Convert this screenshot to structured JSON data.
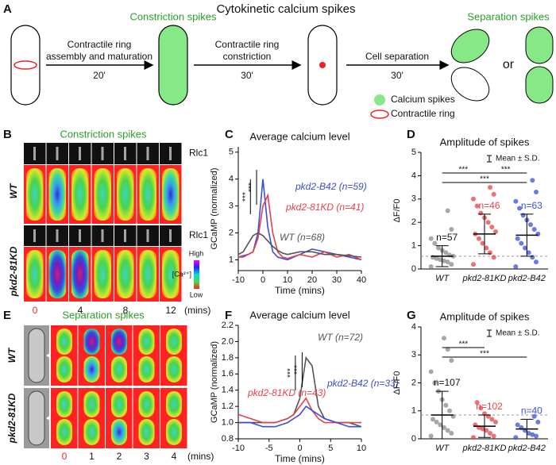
{
  "panel_labels": [
    "A",
    "B",
    "C",
    "D",
    "E",
    "F",
    "G"
  ],
  "schematic": {
    "title": "Cytokinetic calcium spikes",
    "constriction_label": "Constriction spikes",
    "separation_label": "Separation spikes",
    "steps": [
      {
        "lines": [
          "Contractile ring",
          "assembly and maturation"
        ],
        "time": "20'"
      },
      {
        "lines": [
          "Contractile ring",
          "constriction"
        ],
        "time": "30'"
      },
      {
        "lines": [
          "Cell separation"
        ],
        "time": "30'"
      }
    ],
    "or": "or",
    "legend": [
      "Calcium spikes",
      "Contractile ring"
    ]
  },
  "panel_b": {
    "title": "Constriction spikes",
    "rows": [
      {
        "genotype": "WT",
        "marker": "Rlc1"
      },
      {
        "genotype": "pkd2-81KD",
        "marker": "Rlc1"
      }
    ],
    "colorbar": {
      "high": "High",
      "label": "[Ca²⁺]",
      "low": "Low"
    },
    "times": [
      "0",
      "4",
      "8",
      "12"
    ],
    "unit": "(mins)"
  },
  "panel_e": {
    "title": "Separation spikes",
    "rows": [
      "WT",
      "pkd2-81KD"
    ],
    "times": [
      "0",
      "1",
      "2",
      "3",
      "4"
    ],
    "unit": "(mins)"
  },
  "chart_data": [
    {
      "type": "line",
      "title": "Average calcium level",
      "xlabel": "Time (mins)",
      "ylabel": "GCaMP (normalized)",
      "x": [
        -10,
        -8,
        -6,
        -4,
        -2,
        0,
        2,
        4,
        6,
        8,
        10,
        15,
        20,
        25,
        30,
        35,
        40
      ],
      "series": [
        {
          "name": "pkd2-B42 (n=59)",
          "color": "#3b4fd8",
          "values": [
            1.1,
            1.15,
            1.2,
            1.3,
            2.0,
            4.0,
            2.2,
            1.3,
            1.1,
            1.05,
            1.0,
            1.2,
            1.4,
            1.3,
            1.2,
            1.1,
            1.0
          ]
        },
        {
          "name": "pkd2-81KD (n=41)",
          "color": "#e8404a",
          "values": [
            1.1,
            1.1,
            1.2,
            1.3,
            1.8,
            3.0,
            3.4,
            2.0,
            1.3,
            1.1,
            1.05,
            1.2,
            1.1,
            1.3,
            1.1,
            1.2,
            1.0
          ]
        },
        {
          "name": "WT (n=68)",
          "color": "#555555",
          "values": [
            1.2,
            1.3,
            1.6,
            1.9,
            2.0,
            1.9,
            1.7,
            1.5,
            1.35,
            1.25,
            1.2,
            1.3,
            1.3,
            1.2,
            1.2,
            1.15,
            1.1
          ]
        }
      ],
      "annotations": [
        "***",
        "***"
      ],
      "xlim": [
        -10,
        40
      ],
      "xticks": [
        -10,
        0,
        10,
        20,
        30,
        40
      ],
      "ylim": [
        0.6,
        5.2
      ],
      "yticks": [
        1,
        2,
        3,
        4,
        5
      ]
    },
    {
      "type": "strip",
      "title": "Amplitude of spikes",
      "ylabel": "ΔF/F0",
      "legend": "Mean ± S.D.",
      "categories": [
        "WT",
        "pkd2-81KD",
        "pkd2-B42"
      ],
      "series": [
        {
          "color": "#8a8a8a",
          "n_label": "n=57",
          "mean": 0.55,
          "sd": 0.45,
          "values": [
            0.1,
            0.2,
            0.3,
            0.35,
            0.4,
            0.45,
            0.5,
            0.55,
            0.6,
            0.7,
            0.8,
            0.9,
            1.1,
            1.3,
            1.7,
            2.5
          ]
        },
        {
          "color": "#e8404a",
          "n_label": "n=46",
          "mean": 1.5,
          "sd": 0.85,
          "values": [
            0.2,
            0.5,
            0.7,
            0.9,
            1.1,
            1.3,
            1.5,
            1.6,
            1.8,
            2.0,
            2.2,
            2.4,
            2.7,
            3.0,
            3.2,
            3.5
          ]
        },
        {
          "color": "#3b4fd8",
          "n_label": "n=63",
          "mean": 1.45,
          "sd": 0.9,
          "values": [
            0.1,
            0.3,
            0.5,
            0.7,
            0.9,
            1.1,
            1.3,
            1.5,
            1.7,
            1.9,
            2.1,
            2.3,
            2.6,
            2.9,
            3.3,
            3.8
          ]
        }
      ],
      "hline": 0.55,
      "significance": [
        "***",
        "***",
        "***"
      ],
      "ylim": [
        0,
        5
      ],
      "yticks": [
        0,
        1,
        2,
        3,
        4,
        5
      ]
    },
    {
      "type": "line",
      "title": "Average calcium level",
      "xlabel": "Time (mins)",
      "ylabel": "GCaMP (normalized)",
      "x": [
        -10,
        -8,
        -6,
        -4,
        -2,
        -1,
        0,
        1,
        2,
        3,
        4,
        6,
        8,
        10
      ],
      "series": [
        {
          "name": "WT (n=72)",
          "color": "#555555",
          "values": [
            1.0,
            1.0,
            1.0,
            1.0,
            1.05,
            1.1,
            1.3,
            1.8,
            1.7,
            1.2,
            1.05,
            1.0,
            1.0,
            0.95
          ]
        },
        {
          "name": "pkd2-81KD (n=43)",
          "color": "#e8404a",
          "values": [
            1.1,
            1.05,
            1.0,
            1.0,
            1.05,
            1.1,
            1.2,
            1.3,
            1.15,
            1.05,
            1.0,
            1.0,
            1.0,
            1.0
          ]
        },
        {
          "name": "pkd2-B42 (n=33)",
          "color": "#3b4fd8",
          "values": [
            1.0,
            1.0,
            0.95,
            0.95,
            1.0,
            1.05,
            1.1,
            1.2,
            1.15,
            1.1,
            1.05,
            1.0,
            0.95,
            0.95
          ]
        }
      ],
      "annotations": [
        "***",
        "***"
      ],
      "xlim": [
        -10,
        10
      ],
      "xticks": [
        -10,
        -5,
        0,
        5,
        10
      ],
      "ylim": [
        0.8,
        2.2
      ],
      "yticks": [
        0.8,
        {
          "value": 1,
          "label": "1.0"
        },
        1.2,
        1.4,
        1.6,
        1.8,
        {
          "value": 2,
          "label": "2.0"
        },
        2.2
      ]
    },
    {
      "type": "strip",
      "title": "Amplitude of spikes",
      "ylabel": "ΔF/F0",
      "legend": "Mean ± S.D.",
      "categories": [
        "WT",
        "pkd2-81KD",
        "pkd2-B42"
      ],
      "series": [
        {
          "color": "#8a8a8a",
          "n_label": "n=107",
          "mean": 0.85,
          "sd": 0.85,
          "values": [
            0.1,
            0.2,
            0.3,
            0.4,
            0.5,
            0.6,
            0.7,
            0.8,
            1.0,
            1.2,
            1.4,
            1.7,
            2.0,
            2.4,
            2.8,
            3.2,
            3.6
          ]
        },
        {
          "color": "#e8404a",
          "n_label": "n=102",
          "mean": 0.45,
          "sd": 0.4,
          "values": [
            0.05,
            0.1,
            0.2,
            0.3,
            0.35,
            0.4,
            0.5,
            0.6,
            0.7,
            0.8,
            0.9,
            1.1,
            1.3
          ]
        },
        {
          "color": "#3b4fd8",
          "n_label": "n=40",
          "mean": 0.35,
          "sd": 0.35,
          "values": [
            0.05,
            0.1,
            0.15,
            0.2,
            0.3,
            0.4,
            0.5,
            0.6,
            0.8
          ]
        }
      ],
      "hline": 0.85,
      "significance": [
        "***",
        "***"
      ],
      "ylim": [
        0,
        4
      ],
      "yticks": [
        0,
        1,
        2,
        3,
        4
      ]
    }
  ]
}
